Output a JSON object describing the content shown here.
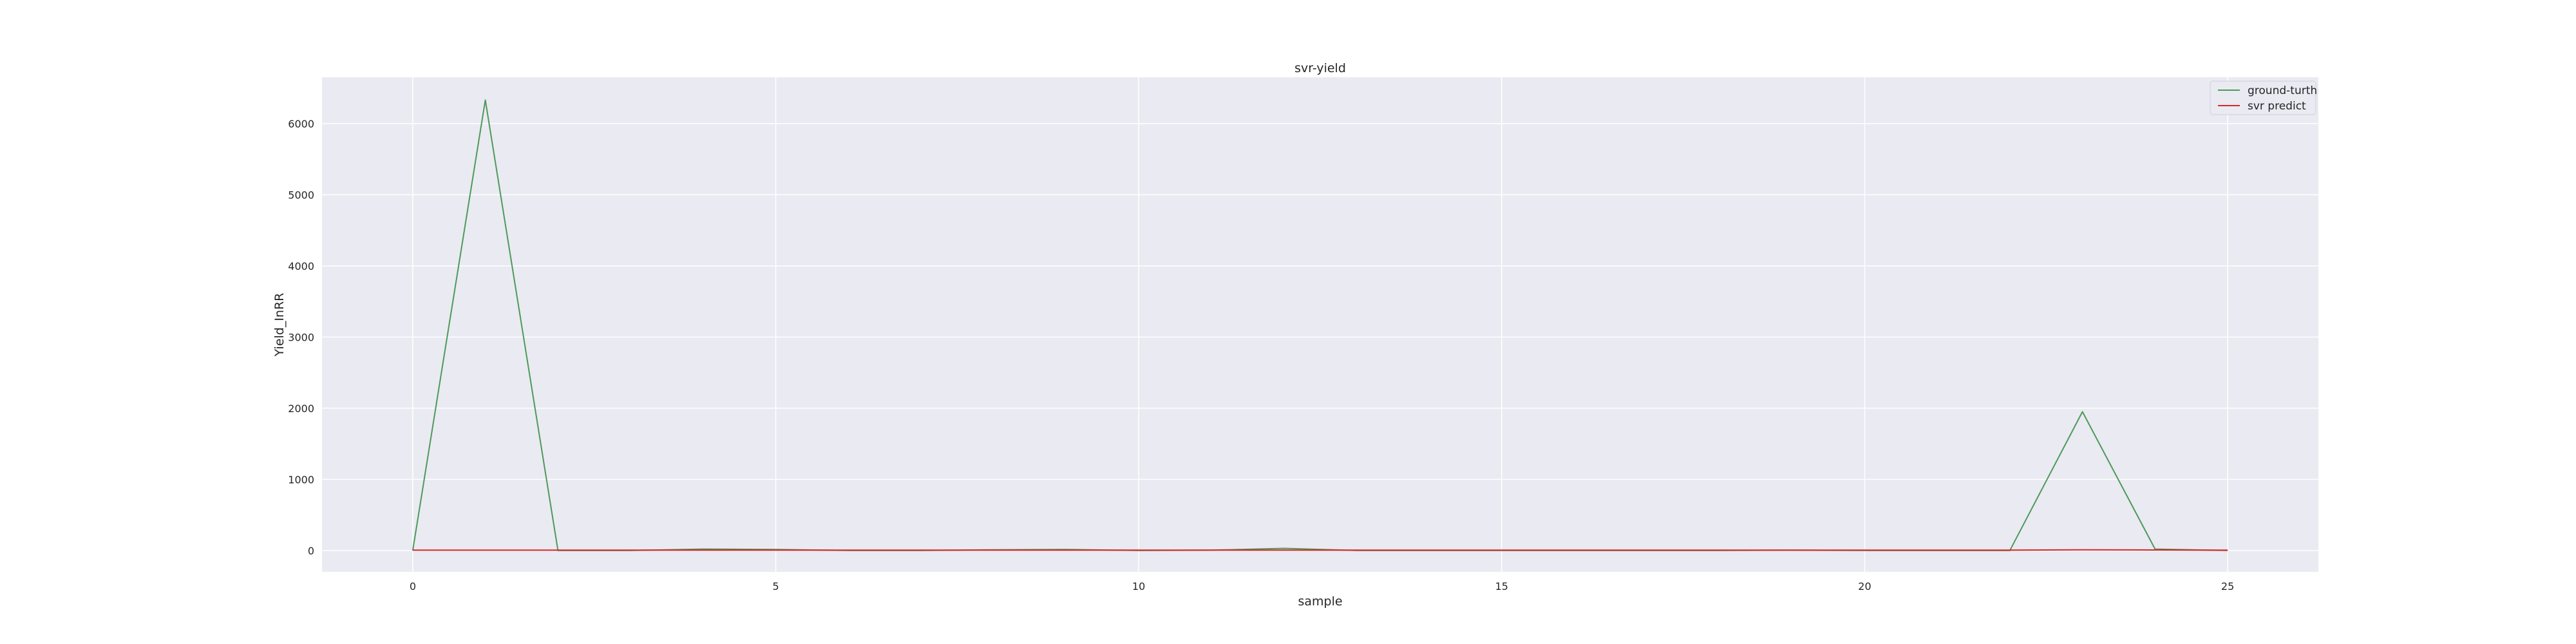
{
  "chart_data": {
    "type": "line",
    "title": "svr-yield",
    "xlabel": "sample",
    "ylabel": "Yield_InRR",
    "xlim": [
      -1.25,
      26.25
    ],
    "ylim": [
      -300,
      6650
    ],
    "xticks": [
      0,
      5,
      10,
      15,
      20,
      25
    ],
    "yticks": [
      0,
      1000,
      2000,
      3000,
      4000,
      5000,
      6000
    ],
    "grid": true,
    "legend_position": "upper right",
    "x": [
      0,
      1,
      2,
      3,
      4,
      5,
      6,
      7,
      8,
      9,
      10,
      11,
      12,
      13,
      14,
      15,
      16,
      17,
      18,
      19,
      20,
      21,
      22,
      23,
      24,
      25
    ],
    "series": [
      {
        "name": "ground-turth",
        "color": "#4c9a59",
        "values": [
          0,
          6330,
          0,
          0,
          20,
          15,
          0,
          0,
          10,
          15,
          0,
          5,
          30,
          0,
          0,
          0,
          0,
          0,
          0,
          5,
          0,
          0,
          0,
          1950,
          20,
          0
        ]
      },
      {
        "name": "svr predict",
        "color": "#d62728",
        "values": [
          5,
          5,
          5,
          5,
          5,
          5,
          5,
          5,
          5,
          5,
          5,
          5,
          5,
          5,
          5,
          5,
          5,
          5,
          5,
          5,
          5,
          5,
          5,
          10,
          8,
          5
        ]
      }
    ]
  }
}
